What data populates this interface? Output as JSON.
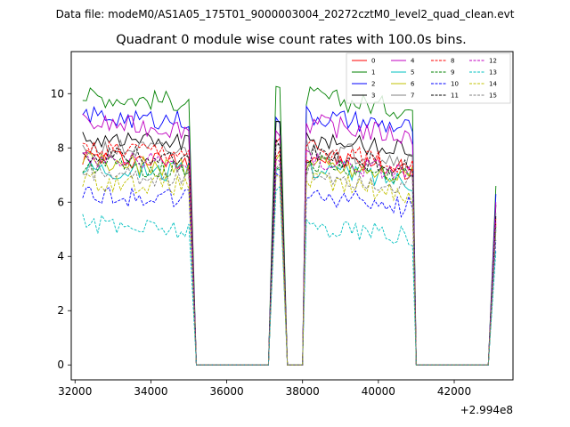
{
  "chart_data": {
    "type": "line",
    "suptitle": "Data file: modeM0/AS1A05_175T01_9000003004_20272cztM0_level2_quad_clean.evt",
    "title": "Quadrant 0 module wise count rates with 100.0s bins.",
    "xlabel": "",
    "ylabel": "",
    "x_offset_label": "+2.994e8",
    "xlim": [
      31900,
      43550
    ],
    "ylim": [
      -0.55,
      11.55
    ],
    "xticks": [
      32000,
      34000,
      36000,
      38000,
      40000,
      42000
    ],
    "yticks": [
      0,
      2,
      4,
      6,
      8,
      10
    ],
    "grid": false,
    "legend_position": "top-right",
    "legend_columns": 4,
    "segments": [
      {
        "start": 32200,
        "end": 35000
      },
      {
        "start": 37300,
        "end": 37400
      },
      {
        "start": 38100,
        "end": 40900
      }
    ],
    "gaps_zero": [
      {
        "from": 35200,
        "to": 37100
      },
      {
        "from": 37600,
        "to": 38000
      },
      {
        "from": 41000,
        "to": 42900
      }
    ],
    "end_point": {
      "x": 43100
    },
    "series": [
      {
        "name": "0",
        "color": "#ff0000",
        "dash": "solid",
        "level": 7.7,
        "peak": 8.4,
        "end": 5.2
      },
      {
        "name": "1",
        "color": "#008000",
        "dash": "solid",
        "level": 9.9,
        "peak": 10.1,
        "end": 6.6
      },
      {
        "name": "2",
        "color": "#0000ff",
        "dash": "solid",
        "level": 9.2,
        "peak": 9.0,
        "end": 6.3
      },
      {
        "name": "3",
        "color": "#000000",
        "dash": "solid",
        "level": 8.4,
        "peak": 8.9,
        "end": 5.9
      },
      {
        "name": "4",
        "color": "#c000c0",
        "dash": "solid",
        "level": 8.9,
        "peak": 8.6,
        "end": 6.0
      },
      {
        "name": "5",
        "color": "#00c0c0",
        "dash": "solid",
        "level": 7.3,
        "peak": 7.2,
        "end": 5.0
      },
      {
        "name": "6",
        "color": "#c0c000",
        "dash": "solid",
        "level": 7.5,
        "peak": 7.6,
        "end": 5.2
      },
      {
        "name": "7",
        "color": "#808080",
        "dash": "solid",
        "level": 8.0,
        "peak": 8.2,
        "end": 5.6
      },
      {
        "name": "8",
        "color": "#ff0000",
        "dash": "dashed",
        "level": 7.9,
        "peak": 7.8,
        "end": 5.4
      },
      {
        "name": "9",
        "color": "#008000",
        "dash": "dashed",
        "level": 7.4,
        "peak": 7.4,
        "end": 5.1
      },
      {
        "name": "10",
        "color": "#0000ff",
        "dash": "dashed",
        "level": 6.3,
        "peak": 6.9,
        "end": 4.6
      },
      {
        "name": "11",
        "color": "#000000",
        "dash": "dashed",
        "level": 7.8,
        "peak": 8.2,
        "end": 5.5
      },
      {
        "name": "12",
        "color": "#c000c0",
        "dash": "dashed",
        "level": 7.6,
        "peak": 7.5,
        "end": 5.3
      },
      {
        "name": "13",
        "color": "#00c0c0",
        "dash": "dashed",
        "level": 5.2,
        "peak": 6.4,
        "end": 4.2
      },
      {
        "name": "14",
        "color": "#c0c000",
        "dash": "dashed",
        "level": 6.8,
        "peak": 7.0,
        "end": 4.9
      },
      {
        "name": "15",
        "color": "#808080",
        "dash": "dashed",
        "level": 7.1,
        "peak": 7.3,
        "end": 5.0
      }
    ]
  }
}
